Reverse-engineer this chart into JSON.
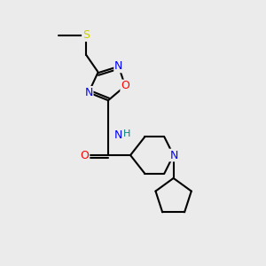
{
  "bg_color": "#ebebeb",
  "bond_color": "#000000",
  "bond_width": 1.5,
  "atom_colors": {
    "N": "#0000ff",
    "O": "#ff0000",
    "S": "#cccc00",
    "H": "#008080",
    "C": "#000000"
  },
  "font_size": 9
}
